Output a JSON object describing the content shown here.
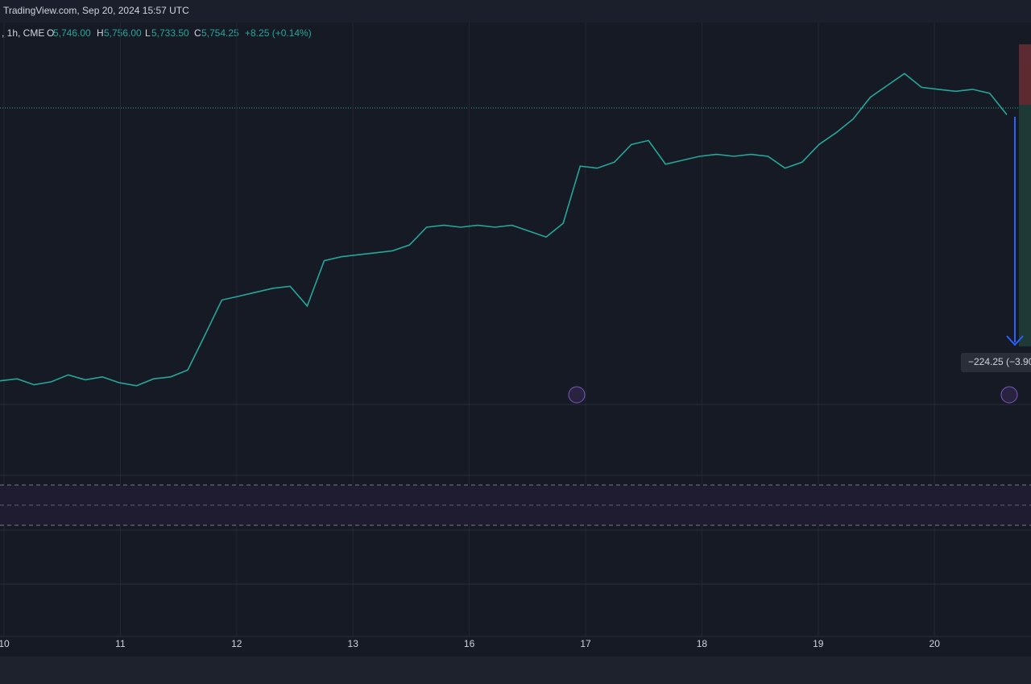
{
  "header": {
    "source": "TradingView.com, Sep 20, 2024 15:57 UTC"
  },
  "legend": {
    "symbol": ", 1h, CME",
    "open_label": "O",
    "open": "5,746.00",
    "high_label": "H",
    "high": "5,756.00",
    "low_label": "L",
    "low": "5,733.50",
    "close_label": "C",
    "close": "5,754.25",
    "change": "+8.25 (+0.14%)"
  },
  "measure": {
    "label": "−224.25 (−3.90"
  },
  "chart_data": {
    "type": "line",
    "x_labels": [
      "10",
      "11",
      "12",
      "13",
      "16",
      "17",
      "18",
      "19",
      "20"
    ],
    "series": [
      {
        "name": "Close",
        "color": "#26a69a",
        "values": [
          5484,
          5486,
          5480,
          5483,
          5490,
          5485,
          5488,
          5482,
          5479,
          5486,
          5488,
          5495,
          5530,
          5566,
          5570,
          5574,
          5578,
          5580,
          5560,
          5606,
          5610,
          5612,
          5614,
          5616,
          5622,
          5640,
          5642,
          5640,
          5642,
          5640,
          5642,
          5636,
          5630,
          5644,
          5702,
          5700,
          5706,
          5724,
          5728,
          5704,
          5708,
          5712,
          5714,
          5712,
          5714,
          5712,
          5700,
          5706,
          5724,
          5736,
          5750,
          5772,
          5784,
          5796,
          5782,
          5780,
          5778,
          5780,
          5776,
          5754.25
        ]
      }
    ],
    "ylim": [
      5460,
      5820
    ]
  }
}
